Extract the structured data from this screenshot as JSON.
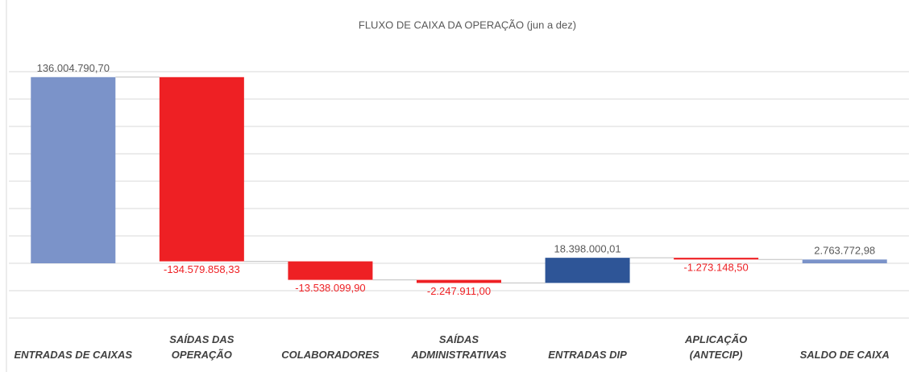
{
  "chart_data": {
    "type": "waterfall",
    "title": "FLUXO DE CAIXA DA OPERAÇÃO (jun a dez)",
    "categories": [
      "ENTRADAS DE CAIXAS",
      "SAÍDAS DAS\nOPERAÇÃO",
      "COLABORADORES",
      "SAÍDAS\nADMINISTRATIVAS",
      "ENTRADAS DIP",
      "APLICAÇÃO\n(ANTECIP)",
      "SALDO DE CAIXA"
    ],
    "values": [
      136004790.7,
      -134579858.33,
      -13538099.9,
      -2247911.0,
      18398000.01,
      -1273148.5,
      2763772.98
    ],
    "value_labels": [
      "136.004.790,70",
      "-134.579.858,33",
      "-13.538.099,90",
      "-2.247.911,00",
      "18.398.000,01",
      "-1.273.148,50",
      "2.763.772,98"
    ],
    "is_total": [
      false,
      false,
      false,
      false,
      false,
      false,
      true
    ],
    "colors": [
      "#7b93c9",
      "#ee2024",
      "#ee2024",
      "#ee2024",
      "#2e5597",
      "#ee2024",
      "#7b93c9"
    ],
    "ylim": [
      -40000000,
      140000000
    ],
    "yticks": [
      -40000000,
      -20000000,
      0,
      20000000,
      40000000,
      60000000,
      80000000,
      100000000,
      120000000,
      140000000
    ],
    "grid": true
  }
}
